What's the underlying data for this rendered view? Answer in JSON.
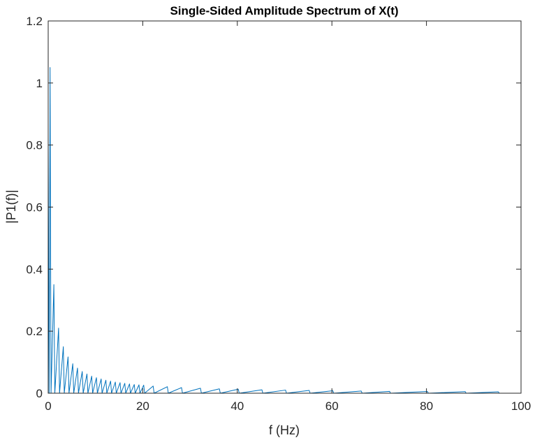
{
  "chart_data": {
    "type": "line",
    "title": "Single-Sided Amplitude Spectrum of X(t)",
    "xlabel": "f (Hz)",
    "ylabel": "|P1(f)|",
    "xlim": [
      0,
      100
    ],
    "ylim": [
      0,
      1.2
    ],
    "xticks": [
      0,
      20,
      40,
      60,
      80,
      100
    ],
    "yticks": [
      0,
      0.2,
      0.4,
      0.6,
      0.8,
      1,
      1.2
    ],
    "xtick_labels": [
      "0",
      "20",
      "40",
      "60",
      "80",
      "100"
    ],
    "ytick_labels": [
      "0",
      "0.2",
      "0.4",
      "0.6",
      "0.8",
      "1",
      "1.2"
    ],
    "grid": false,
    "box": true,
    "line_color": "#0072BD",
    "series": [
      {
        "x": [
          0,
          0.2,
          0.4,
          0.6,
          1.2,
          1.4,
          2.2,
          2.4,
          3.2,
          3.4,
          4.2,
          4.4,
          5.2,
          5.4,
          6.2,
          6.4,
          7.2,
          7.4,
          8.2,
          8.4,
          9.2,
          9.4,
          10.2,
          10.4,
          11.2,
          11.4,
          12.2,
          12.4,
          13.2,
          13.4,
          14.2,
          14.4,
          15.2,
          15.4,
          16.2,
          16.4,
          17.2,
          17.4,
          18.2,
          18.4,
          19.2,
          19.4,
          20.2,
          20.4,
          22.2,
          22.4,
          25.2,
          25.4,
          28.2,
          28.4,
          32.2,
          32.4,
          36.2,
          36.4,
          40.2,
          40.4,
          45.2,
          45.4,
          50.2,
          50.4,
          55.2,
          55.4,
          60.2,
          60.4,
          66.2,
          66.4,
          72.2,
          72.4,
          80.2,
          80.4,
          88.2,
          88.4,
          95.2,
          95.4,
          100
        ],
        "values": [
          0.83,
          0,
          1.05,
          0,
          0.35,
          0,
          0.21,
          0,
          0.15,
          0,
          0.117,
          0,
          0.095,
          0,
          0.081,
          0,
          0.07,
          0,
          0.062,
          0,
          0.055,
          0,
          0.05,
          0,
          0.046,
          0,
          0.042,
          0,
          0.039,
          0,
          0.036,
          0,
          0.034,
          0,
          0.032,
          0,
          0.03,
          0,
          0.028,
          0,
          0.027,
          0,
          0.026,
          0,
          0.023,
          0,
          0.021,
          0,
          0.018,
          0,
          0.016,
          0,
          0.014,
          0,
          0.013,
          0,
          0.011,
          0,
          0.01,
          0,
          0.009,
          0,
          0.008,
          0,
          0.007,
          0,
          0.006,
          0,
          0.0055,
          0,
          0.005,
          0,
          0.0045,
          0,
          0
        ]
      }
    ]
  }
}
